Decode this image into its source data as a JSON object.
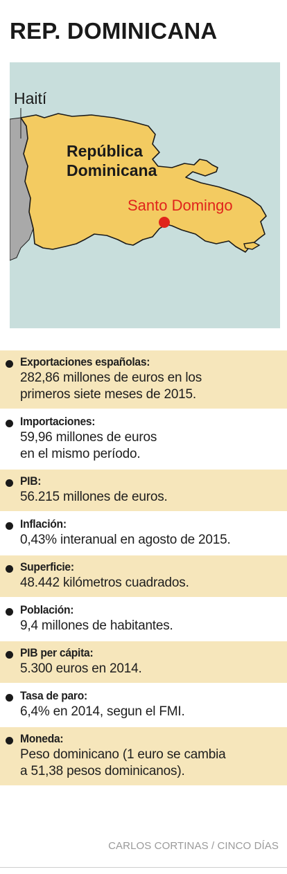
{
  "title": "REP. DOMINICANA",
  "map": {
    "labels": {
      "haiti": "Haití",
      "country_line1": "República",
      "country_line2": "Dominicana",
      "capital": "Santo Domingo"
    },
    "colors": {
      "sea": "#c8dedc",
      "haiti_land": "#a9a9a9",
      "dr_land": "#f3cb61",
      "border": "#1a1a1a",
      "capital_dot": "#e0241b",
      "capital_text": "#e0241b"
    }
  },
  "facts": [
    {
      "label": "Exportaciones españolas:",
      "lines": [
        "282,86 millones de euros en los",
        "primeros siete meses de 2015."
      ],
      "shaded": true
    },
    {
      "label": "Importaciones:",
      "lines": [
        "59,96 millones de euros",
        "en el mismo período."
      ],
      "shaded": false
    },
    {
      "label": "PIB:",
      "lines": [
        "56.215 millones de euros."
      ],
      "shaded": true
    },
    {
      "label": "Inflación:",
      "lines": [
        "0,43% interanual en agosto de 2015."
      ],
      "shaded": false
    },
    {
      "label": "Superficie:",
      "lines": [
        "48.442 kilómetros cuadrados."
      ],
      "shaded": true
    },
    {
      "label": "Población:",
      "lines": [
        "9,4 millones de habitantes."
      ],
      "shaded": false
    },
    {
      "label": "PIB per cápita:",
      "lines": [
        "5.300 euros en 2014."
      ],
      "shaded": true
    },
    {
      "label": "Tasa de paro:",
      "lines": [
        "6,4% en 2014, segun el FMI."
      ],
      "shaded": false
    },
    {
      "label": "Moneda:",
      "lines": [
        "Peso dominicano (1 euro se cambia",
        "a 51,38 pesos dominicanos)."
      ],
      "shaded": true
    }
  ],
  "credit": "CARLOS CORTINAS / CINCO DÍAS"
}
